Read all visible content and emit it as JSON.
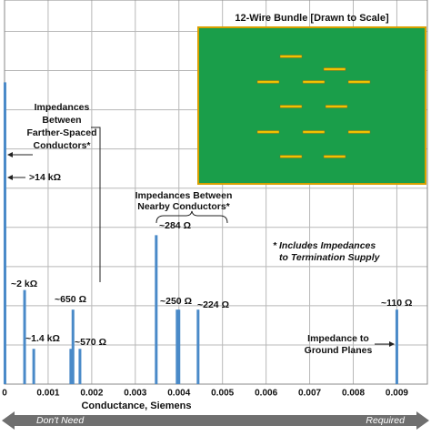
{
  "chart_data": {
    "type": "stem",
    "xlabel": "Conductance, Siemens",
    "xlim": [
      0,
      0.0097
    ],
    "xticks": [
      0,
      0.001,
      0.002,
      0.003,
      0.004,
      0.005,
      0.006,
      0.007,
      0.008,
      0.009
    ],
    "ylim": [
      0,
      9.8
    ],
    "yticks": [
      1,
      2,
      3,
      4,
      5,
      6,
      7,
      8,
      9
    ],
    "grid": true,
    "color": "#4a8ac8",
    "x": [
      1e-05,
      0.00046,
      0.00067,
      0.00152,
      0.00157,
      0.00173,
      0.00348,
      0.00396,
      0.004,
      0.00444,
      0.009
    ],
    "values": [
      7.7,
      2.4,
      0.9,
      0.9,
      1.9,
      0.9,
      3.8,
      1.9,
      1.9,
      1.9,
      1.9
    ],
    "inset_title": "12-Wire Bundle [Drawn to Scale]",
    "annotations": {
      "farther": [
        "Impedances",
        "Between",
        "Farther-Spaced",
        "Conductors*"
      ],
      "z14k": ">14 kΩ",
      "z2k": "~2 kΩ",
      "z1_4k": "~1.4 kΩ",
      "z650": "~650 Ω",
      "z570": "~570 Ω",
      "nearby": [
        "Impedances Between",
        "Nearby Conductors*"
      ],
      "z284": "~284 Ω",
      "z250": "~250 Ω",
      "z224": "~224 Ω",
      "z110": "~110 Ω",
      "note": [
        "* Includes Impedances",
        "to Termination Supply"
      ],
      "ground": [
        "Impedance to",
        "Ground Planes"
      ]
    },
    "scale_left": "Don't Need",
    "scale_right": "Required"
  }
}
